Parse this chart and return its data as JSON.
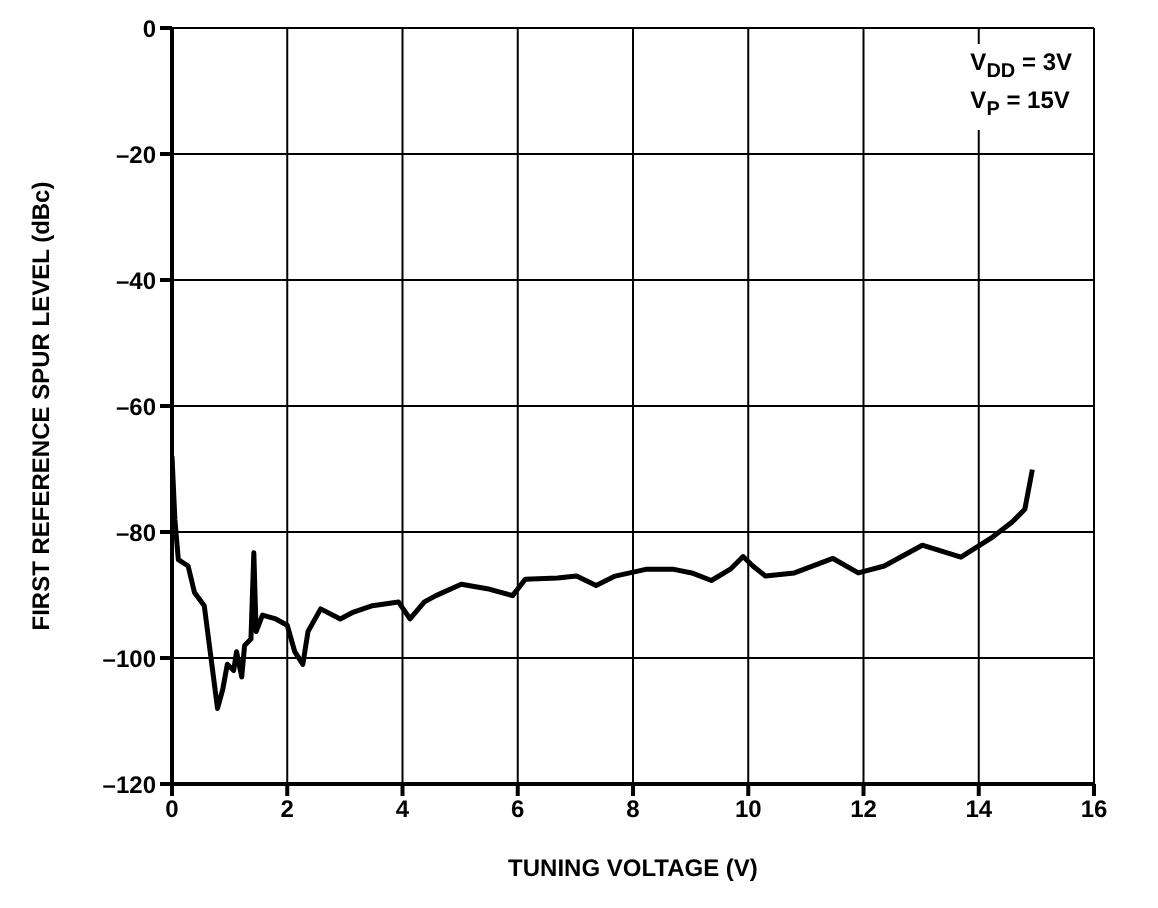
{
  "chart_data": {
    "type": "line",
    "xlabel": "TUNING VOLTAGE (V)",
    "ylabel": "FIRST REFERENCE SPUR LEVEL (dBc)",
    "annotations": [
      "V$_{DD}$ = 3V",
      "V$_{P}$ = 15V"
    ],
    "x": [
      0,
      0.05,
      0.11,
      0.28,
      0.39,
      0.56,
      0.67,
      0.79,
      0.88,
      0.96,
      1.07,
      1.12,
      1.21,
      1.26,
      1.37,
      1.42,
      1.46,
      1.57,
      1.8,
      2.0,
      2.13,
      2.27,
      2.36,
      2.58,
      2.92,
      3.15,
      3.48,
      3.93,
      4.13,
      4.38,
      4.58,
      5.02,
      5.47,
      5.91,
      6.13,
      6.69,
      7.02,
      7.36,
      7.69,
      8.24,
      8.69,
      9.02,
      9.36,
      9.69,
      9.91,
      10.08,
      10.3,
      10.8,
      11.47,
      11.91,
      12.36,
      13.02,
      13.69,
      14.24,
      14.58,
      14.8,
      14.93
    ],
    "series": [
      {
        "color": "#000000",
        "values": [
          -68,
          -78,
          -84.4,
          -85.4,
          -89.6,
          -91.7,
          -99.5,
          -108,
          -105,
          -101,
          -102,
          -99,
          -103,
          -98,
          -97,
          -83.3,
          -95.8,
          -93.2,
          -93.8,
          -94.8,
          -99,
          -101,
          -95.8,
          -92.2,
          -93.8,
          -92.7,
          -91.7,
          -91.1,
          -93.8,
          -91.1,
          -90.1,
          -88.3,
          -89,
          -90.1,
          -87.5,
          -87.3,
          -87,
          -88.5,
          -87,
          -85.9,
          -85.9,
          -86.5,
          -87.7,
          -85.9,
          -83.9,
          -85.4,
          -87,
          -86.5,
          -84.2,
          -86.5,
          -85.4,
          -82.1,
          -84,
          -80.8,
          -78.4,
          -76.4,
          -70.1
        ]
      }
    ],
    "xlim": [
      0,
      16
    ],
    "xticks": [
      0,
      2,
      4,
      6,
      8,
      10,
      12,
      14,
      16
    ],
    "ylim": [
      -120,
      0
    ],
    "yticks": [
      {
        "value": -120,
        "label": "–120"
      },
      {
        "value": -100,
        "label": "–100"
      },
      {
        "value": -80,
        "label": "–80"
      },
      {
        "value": -60,
        "label": "–60"
      },
      {
        "value": -40,
        "label": "–40"
      },
      {
        "value": -20,
        "label": "–20"
      },
      0
    ],
    "grid": true,
    "marker": "none",
    "line_style": "solid"
  }
}
